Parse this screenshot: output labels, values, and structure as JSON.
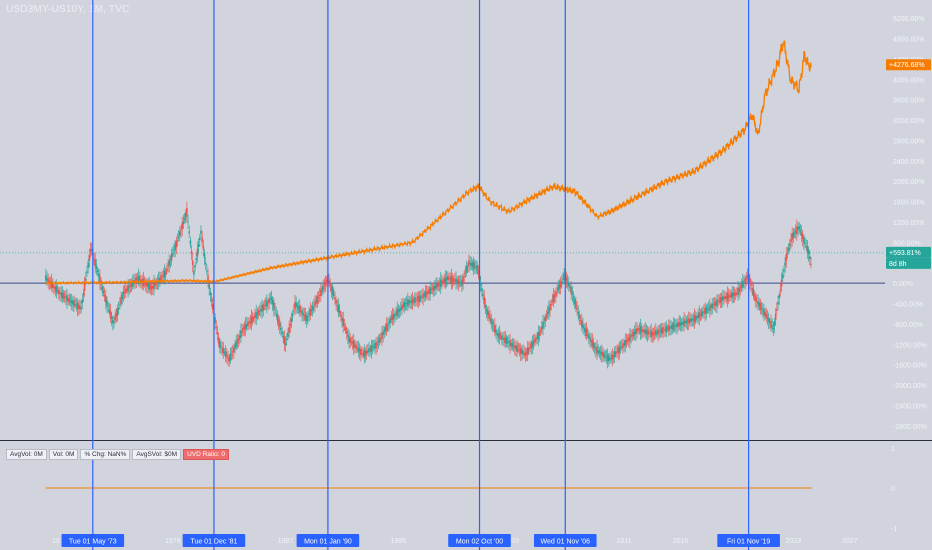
{
  "symbol_title": "USD3MY-US10Y, 1M, TVC",
  "indicators": [
    "AvgVol: 0M",
    "Vol: 0M",
    "% Chg: NaN%",
    "AvgSVol: $0M",
    "UVD Ratio: 0"
  ],
  "colors": {
    "background": "#d1d4dc",
    "vline": "#2962ff",
    "orange": "#f57c00",
    "up": "#26a69a",
    "down": "#ef5350",
    "badge_orange": "#f57c00",
    "badge_teal": "#26a69a"
  },
  "chart_data": {
    "type": "line",
    "x_ticks": [
      "1971",
      "1979",
      "1987",
      "1995",
      "2003",
      "2011",
      "2015",
      "2019",
      "2023",
      "2027"
    ],
    "y_ticks": [
      "5200.00%",
      "4800.00%",
      "4400.00%",
      "4000.00%",
      "3600.00%",
      "3200.00%",
      "2800.00%",
      "2400.00%",
      "2000.00%",
      "1600.00%",
      "1200.00%",
      "800.00%",
      "400.00%",
      "0.00%",
      "-400.00%",
      "-800.00%",
      "-1200.00%",
      "-1600.00%",
      "-2000.00%",
      "-2400.00%",
      "-2800.00%"
    ],
    "ylim": [
      -3000,
      5400
    ],
    "sub_y_ticks": [
      "1",
      "0",
      "-1"
    ],
    "sub_ylim": [
      -1.15,
      1.15
    ],
    "vertical_markers": [
      {
        "label": "Tue 01 May '73",
        "year": 1973.33
      },
      {
        "label": "Tue 01 Dec '81",
        "year": 1981.92
      },
      {
        "label": "Mon 01 Jan '90",
        "year": 1990.0
      },
      {
        "label": "Mon 02 Oct '00",
        "year": 2000.75
      },
      {
        "label": "Wed 01 Nov '06",
        "year": 2006.83
      },
      {
        "label": "Fri 01 Nov '19",
        "year": 2019.83
      }
    ],
    "series": [
      {
        "kind": "orange-line",
        "x": [
          1970,
          1975,
          1980,
          1982,
          1986,
          1990,
          1993,
          1996,
          1998,
          2000,
          2000.7,
          2001.5,
          2002.8,
          2004,
          2006,
          2007.5,
          2008.5,
          2009.1,
          2010,
          2012,
          2014,
          2016,
          2018,
          2019.5,
          2020.1,
          2020.5,
          2021,
          2021.9,
          2022.3,
          2022.8,
          2023.4,
          2023.8,
          2024,
          2024.3
        ],
        "values": [
          0,
          15,
          50,
          30,
          300,
          500,
          650,
          800,
          1300,
          1800,
          1900,
          1600,
          1400,
          1600,
          1900,
          1800,
          1500,
          1300,
          1400,
          1700,
          2000,
          2200,
          2600,
          3000,
          3300,
          2900,
          3700,
          4300,
          4750,
          4000,
          3800,
          4500,
          4300,
          4250
        ]
      },
      {
        "kind": "spread-candles",
        "x": [
          1970,
          1971,
          1972,
          1972.5,
          1973.2,
          1974.0,
          1974.8,
          1975.5,
          1976.5,
          1977.5,
          1978.5,
          1979.3,
          1980.0,
          1980.5,
          1981.0,
          1981.6,
          1982.3,
          1983.0,
          1984.0,
          1985.0,
          1986.0,
          1987.0,
          1987.7,
          1988.5,
          1989.3,
          1990.0,
          1990.5,
          1991.5,
          1992.5,
          1993.5,
          1994.5,
          1995.5,
          1996.5,
          1997.5,
          1998.5,
          1999.5,
          2000.0,
          2000.6,
          2001.2,
          2002.0,
          2003.0,
          2004.0,
          2005.0,
          2006.0,
          2006.8,
          2007.2,
          2008.0,
          2009.0,
          2010.0,
          2011.0,
          2012.0,
          2013.0,
          2014.0,
          2015.0,
          2016.0,
          2017.0,
          2018.0,
          2019.0,
          2019.8,
          2020.3,
          2021.0,
          2021.6,
          2022.1,
          2022.5,
          2022.9,
          2023.4,
          2023.8,
          2024.1,
          2024.3
        ],
        "values": [
          100,
          -200,
          -400,
          -500,
          700,
          -100,
          -800,
          -200,
          100,
          -100,
          200,
          800,
          1400,
          200,
          1000,
          -100,
          -1200,
          -1500,
          -900,
          -600,
          -300,
          -1200,
          -400,
          -700,
          -300,
          100,
          -300,
          -1100,
          -1400,
          -1200,
          -700,
          -400,
          -300,
          -100,
          100,
          0,
          400,
          300,
          -500,
          -1000,
          -1200,
          -1400,
          -1000,
          -300,
          150,
          -100,
          -800,
          -1300,
          -1500,
          -1200,
          -900,
          -1000,
          -900,
          -800,
          -700,
          -500,
          -300,
          -200,
          150,
          -300,
          -600,
          -900,
          -100,
          500,
          900,
          1100,
          800,
          600,
          300
        ]
      },
      {
        "kind": "sub-indicator",
        "x": [
          1970,
          2024.3
        ],
        "values": [
          0,
          0
        ]
      }
    ],
    "price_badges": [
      {
        "text": "+4276.68%",
        "value": 4276.68,
        "color": "orange"
      },
      {
        "text": "+593.81%",
        "value": 593.81,
        "color": "teal"
      },
      {
        "text": "8d 8h",
        "value": 593.81,
        "color": "teal"
      }
    ],
    "reference_lines": [
      {
        "kind": "dotted",
        "value": 593.81
      },
      {
        "kind": "solid",
        "value": 0
      }
    ]
  }
}
